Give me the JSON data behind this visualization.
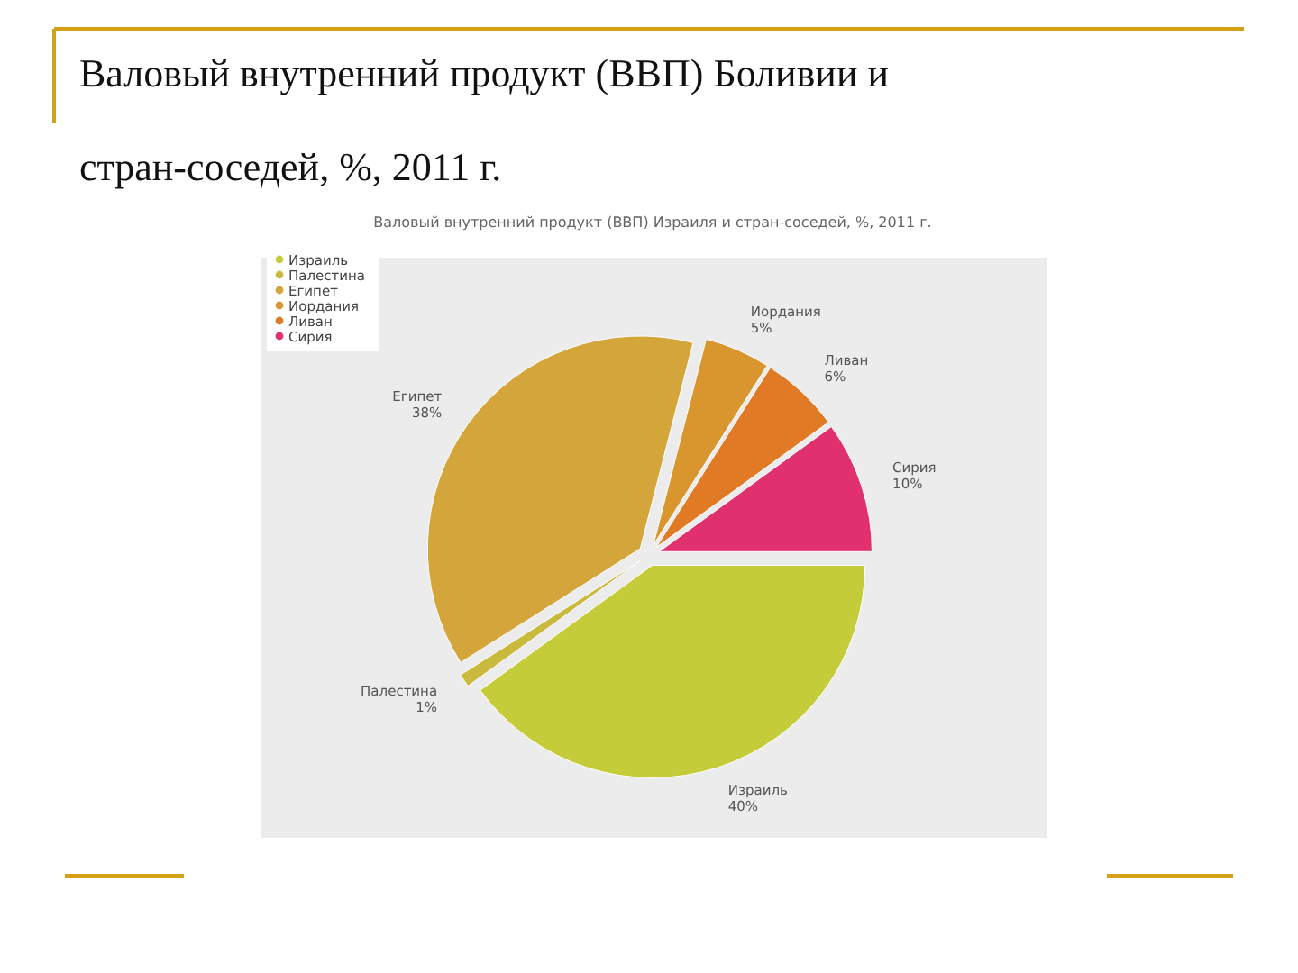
{
  "chart_data": {
    "type": "pie",
    "title": "Валовый внутренний продукт (ВВП) Боливии и стран-соседей, %, 2011 г.",
    "subtitle": "Валовый внутренний продукт (ВВП) Израиля и стран-соседей, %, 2011 г.",
    "categories": [
      "Израиль",
      "Палестина",
      "Египет",
      "Иордания",
      "Ливан",
      "Сирия"
    ],
    "values": [
      40,
      1,
      38,
      5,
      6,
      10
    ],
    "colors": [
      "#c5cc3a",
      "#c9b93c",
      "#d4a53a",
      "#d9952e",
      "#e07a25",
      "#e0306e"
    ],
    "value_labels": [
      "40%",
      "1%",
      "38%",
      "5%",
      "6%",
      "10%"
    ],
    "legend": "top left"
  }
}
